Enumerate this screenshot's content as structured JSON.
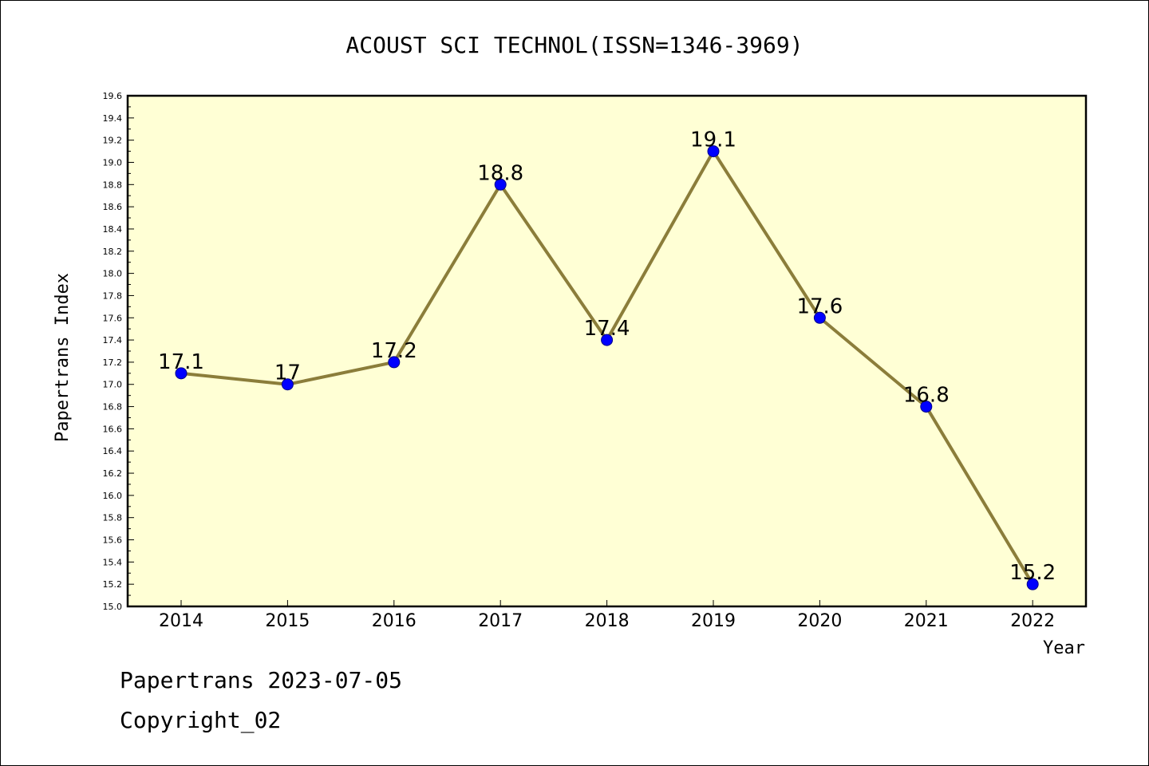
{
  "chart_data": {
    "type": "line",
    "title": "ACOUST SCI TECHNOL(ISSN=1346-3969)",
    "xlabel": "Year",
    "ylabel": "Papertrans Index",
    "categories": [
      "2014",
      "2015",
      "2016",
      "2017",
      "2018",
      "2019",
      "2020",
      "2021",
      "2022"
    ],
    "values": [
      17.1,
      17.0,
      17.2,
      18.8,
      17.4,
      19.1,
      17.6,
      16.8,
      15.2
    ],
    "data_labels": [
      "17.1",
      "17",
      "17.2",
      "18.8",
      "17.4",
      "19.1",
      "17.6",
      "16.8",
      "15.2"
    ],
    "ylim": [
      15.0,
      19.6
    ],
    "y_ticks": [
      "15.0",
      "15.2",
      "15.4",
      "15.6",
      "15.8",
      "16.0",
      "16.2",
      "16.4",
      "16.6",
      "16.8",
      "17.0",
      "17.2",
      "17.4",
      "17.6",
      "17.8",
      "18.0",
      "18.2",
      "18.4",
      "18.6",
      "18.8",
      "19.0",
      "19.2",
      "19.4",
      "19.6"
    ],
    "grid": false,
    "colors": {
      "plot_background": "#ffffd5",
      "line": "#8b7d3a",
      "marker": "#0000ff"
    }
  },
  "footer": {
    "line1": "Papertrans 2023-07-05",
    "line2": "Copyright_02"
  }
}
